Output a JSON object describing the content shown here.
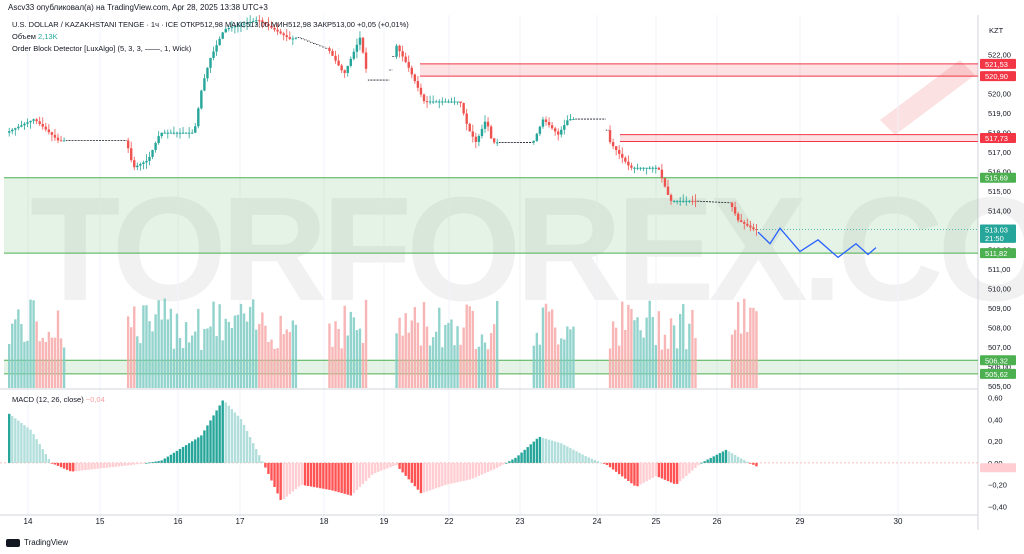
{
  "header": {
    "publisher_line": "Ascv33 опубликовал(а) на TradingView.com, Apr 28, 2025 13:38 UTC+3"
  },
  "legend": {
    "symbol_line": "U.S. DOLLAR / KAZAKHSTANI TENGE · 1ч · ICE  ОТКР512,98  МАКС513,00  МИН512,98  ЗАКР513,00  +0,05 (+0,01%)",
    "volume_label": "Объем",
    "volume_value": "2,13K",
    "indicator_line": "Order Block Detector [LuxAlgo] (5, 3, 3, ——, 1, Wick)"
  },
  "macd_legend": {
    "label": "MACD (12, 26, close)",
    "value": "−0,04"
  },
  "currency": "KZT",
  "footer": {
    "brand": "TradingView"
  },
  "watermark": "TORFOREX.COM",
  "colors": {
    "up": "#26a69a",
    "down": "#ef5350",
    "bear_ob": "#f23645",
    "bull_ob": "#4caf50",
    "projection": "#2962ff",
    "watermark": "#e0e0e0"
  },
  "chart_data": [
    {
      "type": "candlestick",
      "x_tick_labels": [
        "14",
        "15",
        "16",
        "17",
        "18",
        "19",
        "22",
        "23",
        "24",
        "25",
        "26",
        "29",
        "30"
      ],
      "y_range": [
        505.0,
        522.5
      ],
      "y_tick_labels": [
        "522,00",
        "521,00",
        "520,00",
        "519,00",
        "518,00",
        "517,00",
        "516,00",
        "515,00",
        "514,00",
        "513,00",
        "512,00",
        "511,00",
        "510,00",
        "509,00",
        "508,00",
        "507,00",
        "506,00",
        "505,00"
      ],
      "price_labels": [
        {
          "text": "521,53",
          "value": 521.53,
          "kind": "bear"
        },
        {
          "text": "520,90",
          "value": 520.9,
          "kind": "bear"
        },
        {
          "text": "517,73",
          "value": 517.73,
          "kind": "bear"
        },
        {
          "text": "515,69",
          "value": 515.69,
          "kind": "bull"
        },
        {
          "text": "513,03",
          "value": 513.03,
          "kind": "last"
        },
        {
          "text": "21:50",
          "value": 512.6,
          "kind": "countdown"
        },
        {
          "text": "511,82",
          "value": 511.82,
          "kind": "bull"
        },
        {
          "text": "506,32",
          "value": 506.32,
          "kind": "bull"
        },
        {
          "text": "505,62",
          "value": 505.62,
          "kind": "bull"
        }
      ],
      "order_blocks": [
        {
          "side": "bear",
          "top": 521.53,
          "bottom": 520.9
        },
        {
          "side": "bear",
          "top": 517.9,
          "bottom": 517.55
        },
        {
          "side": "bull",
          "top": 515.69,
          "bottom": 511.82
        },
        {
          "side": "bull",
          "top": 506.32,
          "bottom": 505.62
        }
      ],
      "projection_path": [
        {
          "day": "26",
          "price": 512.9
        },
        {
          "day": "",
          "price": 512.3
        },
        {
          "day": "",
          "price": 513.1
        },
        {
          "day": "",
          "price": 511.9
        },
        {
          "day": "29",
          "price": 512.5
        },
        {
          "day": "",
          "price": 511.6
        },
        {
          "day": "30",
          "price": 512.3
        },
        {
          "day": "",
          "price": 511.75
        },
        {
          "day": "",
          "price": 512.1
        }
      ]
    },
    {
      "type": "bar",
      "name": "MACD (12, 26, close)",
      "y_range": [
        -0.45,
        0.65
      ],
      "y_tick_labels": [
        "0,60",
        "0,40",
        "0,20",
        "0,00",
        "−0,20",
        "−0,40"
      ],
      "y_tick_values": [
        0.6,
        0.4,
        0.2,
        0.0,
        -0.2,
        -0.4
      ],
      "last_value": -0.04
    }
  ]
}
